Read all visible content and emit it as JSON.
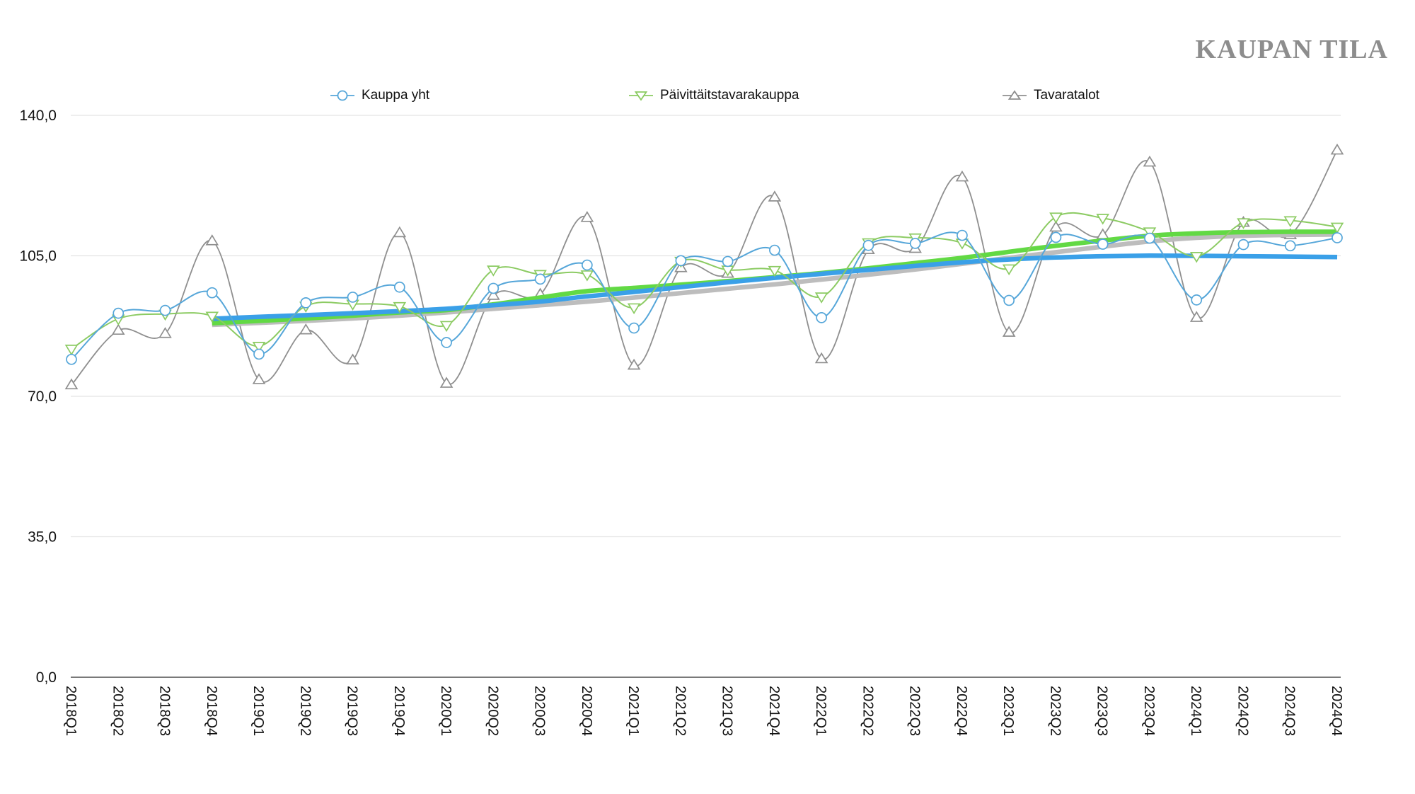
{
  "logo": {
    "text": "KAUPAN TILA",
    "color": "#8d8d8d"
  },
  "legend": {
    "items": [
      {
        "label": "Kauppa yht",
        "marker": "circle",
        "color": "#55a6d9"
      },
      {
        "label": "Päivittäitstavarakauppa",
        "marker": "triangle-down",
        "color": "#8ccb63"
      },
      {
        "label": "Tavaratalot",
        "marker": "triangle-up",
        "color": "#8f8f8f"
      }
    ]
  },
  "chart_data": {
    "type": "line",
    "title": "",
    "xlabel": "",
    "ylabel": "",
    "ylim": [
      0,
      140
    ],
    "grid": true,
    "legend_position": "top",
    "y_ticks": [
      {
        "value": 140,
        "label": "140,0"
      },
      {
        "value": 105,
        "label": "105,0"
      },
      {
        "value": 70,
        "label": "70,0"
      },
      {
        "value": 35,
        "label": "35,0"
      },
      {
        "value": 0,
        "label": "0,0"
      }
    ],
    "categories": [
      "2018Q1",
      "2018Q2",
      "2018Q3",
      "2018Q4",
      "2019Q1",
      "2019Q2",
      "2019Q3",
      "2019Q4",
      "2020Q1",
      "2020Q2",
      "2020Q3",
      "2020Q4",
      "2021Q1",
      "2021Q2",
      "2021Q3",
      "2021Q4",
      "2022Q1",
      "2022Q2",
      "2022Q3",
      "2022Q4",
      "2023Q1",
      "2023Q2",
      "2023Q3",
      "2023Q4",
      "2024Q1",
      "2024Q2",
      "2024Q3",
      "2024Q4"
    ],
    "series": [
      {
        "name": "Kauppa yht",
        "marker": "circle",
        "color": "#55a6d9",
        "line_width": 2,
        "values": [
          79.2,
          90.7,
          91.4,
          95.8,
          80.5,
          93.3,
          94.7,
          97.2,
          83.4,
          96.9,
          99.2,
          102.7,
          87.0,
          103.8,
          103.6,
          106.4,
          89.6,
          107.6,
          108.1,
          110.1,
          93.9,
          109.6,
          107.9,
          109.4,
          94.0,
          107.8,
          107.5,
          109.5
        ]
      },
      {
        "name": "Päivittäitstavarakauppa",
        "marker": "triangle-down",
        "color": "#8ccb63",
        "line_width": 2,
        "values": [
          81.8,
          89.3,
          90.5,
          90.0,
          82.5,
          92.5,
          93.0,
          92.4,
          87.7,
          101.5,
          100.4,
          100.3,
          92.1,
          103.7,
          101.5,
          101.4,
          94.8,
          108.3,
          109.5,
          108.2,
          101.8,
          114.7,
          114.4,
          111.0,
          104.9,
          113.3,
          113.8,
          112.2
        ]
      },
      {
        "name": "Tavaratalot",
        "marker": "triangle-up",
        "color": "#8f8f8f",
        "line_width": 1.8,
        "values": [
          72.8,
          86.4,
          85.6,
          108.7,
          74.1,
          86.5,
          79.0,
          110.7,
          73.2,
          95.1,
          95.4,
          114.5,
          77.7,
          102.0,
          100.6,
          119.6,
          79.3,
          106.5,
          106.8,
          124.6,
          85.9,
          112.1,
          110.2,
          128.3,
          89.6,
          113.3,
          110.2,
          131.3
        ]
      }
    ],
    "trend_lines": [
      {
        "name": "Tavaratalot trend",
        "color": "#bdbdbd",
        "line_width": 6.5,
        "start_index": 3,
        "values": [
          87.8,
          88.3,
          88.8,
          89.4,
          90.1,
          90.9,
          91.8,
          92.7,
          93.6,
          94.6,
          95.7,
          96.8,
          97.9,
          99.1,
          100.3,
          101.6,
          103.0,
          104.5,
          105.9,
          107.3,
          108.6,
          109.5,
          110.0,
          110.2,
          110.3
        ]
      },
      {
        "name": "Päivittäitstavarakauppa trend",
        "color": "#62d944",
        "line_width": 6.5,
        "start_index": 3,
        "values": [
          88.2,
          88.8,
          89.4,
          90.1,
          90.9,
          91.5,
          92.9,
          94.6,
          96.2,
          97.0,
          97.8,
          98.7,
          99.7,
          100.7,
          101.9,
          103.2,
          104.5,
          106.0,
          107.5,
          108.8,
          110.0,
          110.6,
          110.9,
          111.0,
          111.0
        ]
      },
      {
        "name": "Kauppa yht trend",
        "color": "#3aa0e8",
        "line_width": 6.5,
        "start_index": 3,
        "values": [
          89.3,
          89.8,
          90.2,
          90.7,
          91.2,
          91.8,
          92.7,
          93.6,
          94.9,
          96.0,
          97.2,
          98.4,
          99.5,
          100.5,
          101.5,
          102.5,
          103.4,
          104.1,
          104.6,
          104.9,
          105.05,
          105.0,
          104.9,
          104.8,
          104.7
        ]
      }
    ],
    "colors": {
      "gridline": "#e3e3e3",
      "axis_line": "#4d4d4d",
      "tick_label": "#111111"
    }
  }
}
